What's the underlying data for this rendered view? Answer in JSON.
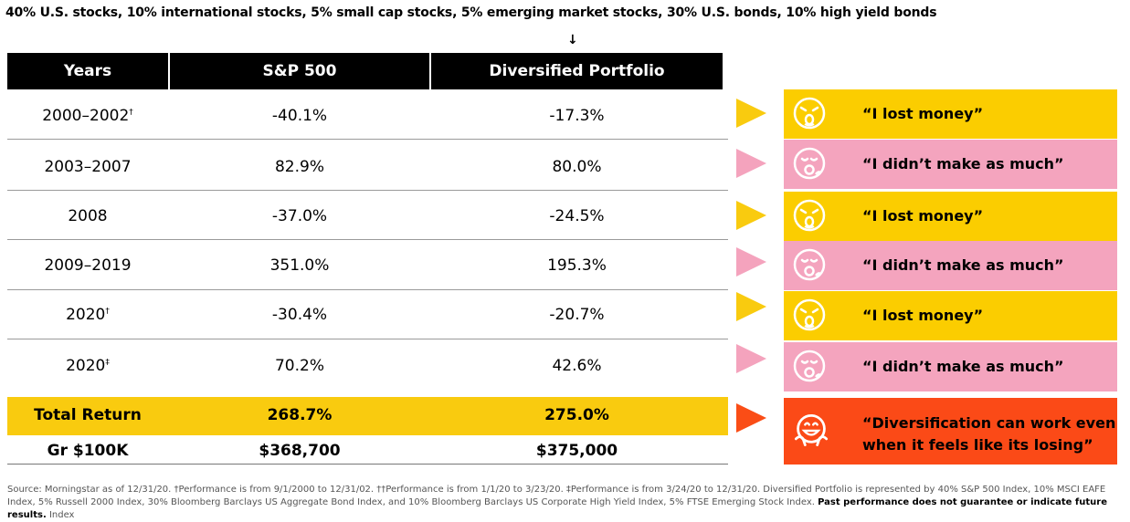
{
  "headline": "40% U.S. stocks, 10% international stocks, 5% small cap stocks, 5% emerging market stocks, 30% U.S. bonds, 10% high yield bonds",
  "table": {
    "headers": [
      "Years",
      "S&P 500",
      "Diversified Portfolio"
    ],
    "rows": [
      {
        "years": "2000–2002",
        "mark": "†",
        "sp500": "-40.1%",
        "diversified": "-17.3%"
      },
      {
        "years": "2003–2007",
        "mark": "",
        "sp500": "82.9%",
        "diversified": "80.0%"
      },
      {
        "years": "2008",
        "mark": "",
        "sp500": "-37.0%",
        "diversified": "-24.5%"
      },
      {
        "years": "2009–2019",
        "mark": "",
        "sp500": "351.0%",
        "diversified": "195.3%"
      },
      {
        "years": "2020",
        "mark": "†",
        "sp500": "-30.4%",
        "diversified": "-20.7%"
      },
      {
        "years": "2020",
        "mark": "‡",
        "sp500": "70.2%",
        "diversified": "42.6%"
      }
    ],
    "total": {
      "label": "Total Return",
      "sp500": "268.7%",
      "diversified": "275.0%"
    },
    "growth": {
      "label": "Gr $100K",
      "sp500": "$368,700",
      "diversified": "$375,000"
    }
  },
  "callouts": [
    {
      "text": "“I lost money”",
      "color": "#fbcd00",
      "icon": "distressed-face-icon"
    },
    {
      "text": "“I didn’t make as much”",
      "color": "#f4a4be",
      "icon": "yawning-face-icon"
    },
    {
      "text": "“I lost money”",
      "color": "#fbcd00",
      "icon": "distressed-face-icon"
    },
    {
      "text": "“I didn’t make as much”",
      "color": "#f4a4be",
      "icon": "yawning-face-icon"
    },
    {
      "text": "“I lost money”",
      "color": "#fbcd00",
      "icon": "distressed-face-icon"
    },
    {
      "text": "“I didn’t make as much”",
      "color": "#f4a4be",
      "icon": "yawning-face-icon"
    }
  ],
  "final_callout": {
    "line1": "“Diversification can work even",
    "line2": "when it feels like its losing”",
    "color": "#fb4a17",
    "icon": "hugging-face-icon"
  },
  "footnote": {
    "text": "Source: Morningstar as of 12/31/20. †Performance is from 9/1/2000 to 12/31/02. ††Performance is from 1/1/20 to 3/23/20. ‡Performance is from 3/24/20 to 12/31/20. Diversified Portfolio is represented by 40% S&P 500 Index, 10% MSCI EAFE Index, 5% Russell 2000 Index, 30% Bloomberg Barclays US Aggregate Bond Index, and 10% Bloomberg Barclays US Corporate High Yield Index, 5% FTSE Emerging Stock Index.",
    "bold": "Past performance does not guarantee or indicate future results.",
    "tail": "Index"
  }
}
